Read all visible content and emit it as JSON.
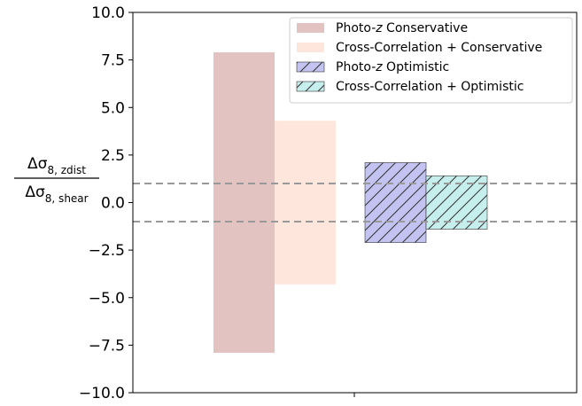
{
  "chart_data": {
    "type": "bar",
    "ylim": [
      -10.0,
      10.0
    ],
    "yticks": [
      10.0,
      7.5,
      5.0,
      2.5,
      0.0,
      -2.5,
      -5.0,
      -7.5,
      -10.0
    ],
    "ytick_labels": [
      "10.0",
      "7.5",
      "5.0",
      "2.5",
      "0.0",
      "−2.5",
      "−5.0",
      "−7.5",
      "−10.0"
    ],
    "ylabel": {
      "numerator": "Δσ",
      "numerator_sub": "8, zdist",
      "denominator": "Δσ",
      "denominator_sub": "8, shear"
    },
    "grid": false,
    "legend_position": "top-right",
    "reference_lines": [
      1.0,
      -1.0
    ],
    "series": [
      {
        "name": "Photo-z Conservative",
        "name_prefix": "Photo-",
        "name_italic": "z",
        "name_suffix": " Conservative",
        "low": -7.9,
        "high": 7.9,
        "color": "#e3c2c2",
        "hatch": false
      },
      {
        "name": "Cross-Correlation + Conservative",
        "name_prefix": "Cross-Correlation + Conservative",
        "name_italic": "",
        "name_suffix": "",
        "low": -4.3,
        "high": 4.3,
        "color": "#ffe6dc",
        "hatch": false
      },
      {
        "name": "Photo-z Optimistic",
        "name_prefix": "Photo-",
        "name_italic": "z",
        "name_suffix": " Optimistic",
        "low": -2.1,
        "high": 2.1,
        "color": "#c2c3f0",
        "hatch": true
      },
      {
        "name": "Cross-Correlation + Optimistic",
        "name_prefix": "Cross-Correlation + Optimistic",
        "name_italic": "",
        "name_suffix": "",
        "low": -1.4,
        "high": 1.4,
        "color": "#c6eeec",
        "hatch": true
      }
    ]
  }
}
